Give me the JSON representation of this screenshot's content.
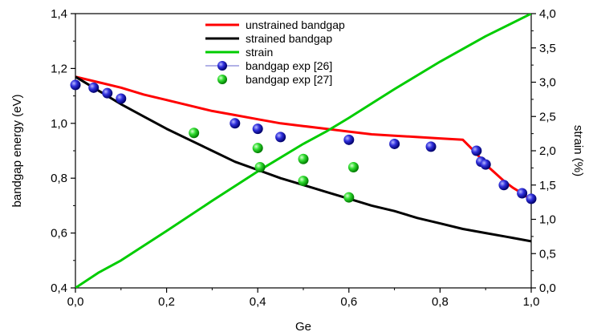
{
  "chart_data": {
    "type": "line",
    "xlabel": "Ge",
    "ylabel": "bandgap energy (eV)",
    "y2label": "strain (%)",
    "xlim": [
      0,
      1
    ],
    "ylim": [
      0.4,
      1.4
    ],
    "y2lim": [
      0,
      4
    ],
    "x_ticks": [
      "0,0",
      "0,2",
      "0,4",
      "0,6",
      "0,8",
      "1,0"
    ],
    "y_ticks": [
      "0,4",
      "0,6",
      "0,8",
      "1,0",
      "1,2",
      "1,4"
    ],
    "y2_ticks": [
      "0,0",
      "0,5",
      "1,0",
      "1,5",
      "2,0",
      "2,5",
      "3,0",
      "3,5",
      "4,0"
    ],
    "legend_position": "top-center",
    "series": [
      {
        "name": "unstrained bandgap",
        "kind": "line",
        "axis": "left",
        "color": "#ff0000",
        "x": [
          0,
          0.05,
          0.1,
          0.15,
          0.2,
          0.25,
          0.3,
          0.35,
          0.4,
          0.45,
          0.5,
          0.55,
          0.6,
          0.65,
          0.7,
          0.75,
          0.8,
          0.85,
          0.88,
          0.9,
          0.92,
          0.94,
          0.96,
          0.98,
          1.0
        ],
        "y": [
          1.17,
          1.15,
          1.13,
          1.105,
          1.085,
          1.065,
          1.045,
          1.03,
          1.015,
          1.0,
          0.99,
          0.98,
          0.97,
          0.96,
          0.955,
          0.95,
          0.945,
          0.94,
          0.89,
          0.85,
          0.82,
          0.79,
          0.765,
          0.745,
          0.72
        ]
      },
      {
        "name": "strained bandgap",
        "kind": "line",
        "axis": "left",
        "color": "#000000",
        "x": [
          0,
          0.05,
          0.1,
          0.15,
          0.2,
          0.25,
          0.3,
          0.35,
          0.4,
          0.45,
          0.5,
          0.55,
          0.6,
          0.65,
          0.7,
          0.75,
          0.8,
          0.85,
          0.9,
          0.95,
          1.0
        ],
        "y": [
          1.17,
          1.12,
          1.07,
          1.025,
          0.98,
          0.94,
          0.9,
          0.86,
          0.83,
          0.8,
          0.775,
          0.75,
          0.725,
          0.7,
          0.68,
          0.655,
          0.635,
          0.615,
          0.6,
          0.585,
          0.57
        ]
      },
      {
        "name": "strain",
        "kind": "line",
        "axis": "right",
        "color": "#00cc00",
        "x": [
          0,
          0.05,
          0.1,
          0.2,
          0.3,
          0.4,
          0.5,
          0.55,
          0.6,
          0.7,
          0.8,
          0.9,
          1.0
        ],
        "y": [
          0,
          0.22,
          0.4,
          0.83,
          1.27,
          1.7,
          2.1,
          2.28,
          2.48,
          2.9,
          3.3,
          3.67,
          4.0
        ]
      },
      {
        "name": "bandgap exp [26]",
        "kind": "scatter",
        "axis": "left",
        "color": "#2222cc",
        "x": [
          0.0,
          0.04,
          0.07,
          0.1,
          0.35,
          0.4,
          0.45,
          0.6,
          0.7,
          0.78,
          0.88,
          0.89,
          0.9,
          0.94,
          0.98,
          1.0
        ],
        "y": [
          1.14,
          1.13,
          1.11,
          1.09,
          1.0,
          0.98,
          0.95,
          0.94,
          0.925,
          0.915,
          0.9,
          0.86,
          0.85,
          0.775,
          0.745,
          0.725
        ]
      },
      {
        "name": "bandgap exp [27]",
        "kind": "scatter",
        "axis": "left",
        "color": "#22cc22",
        "x": [
          0.26,
          0.4,
          0.405,
          0.5,
          0.5,
          0.6,
          0.61
        ],
        "y": [
          0.965,
          0.91,
          0.84,
          0.87,
          0.79,
          0.73,
          0.84
        ]
      }
    ]
  }
}
